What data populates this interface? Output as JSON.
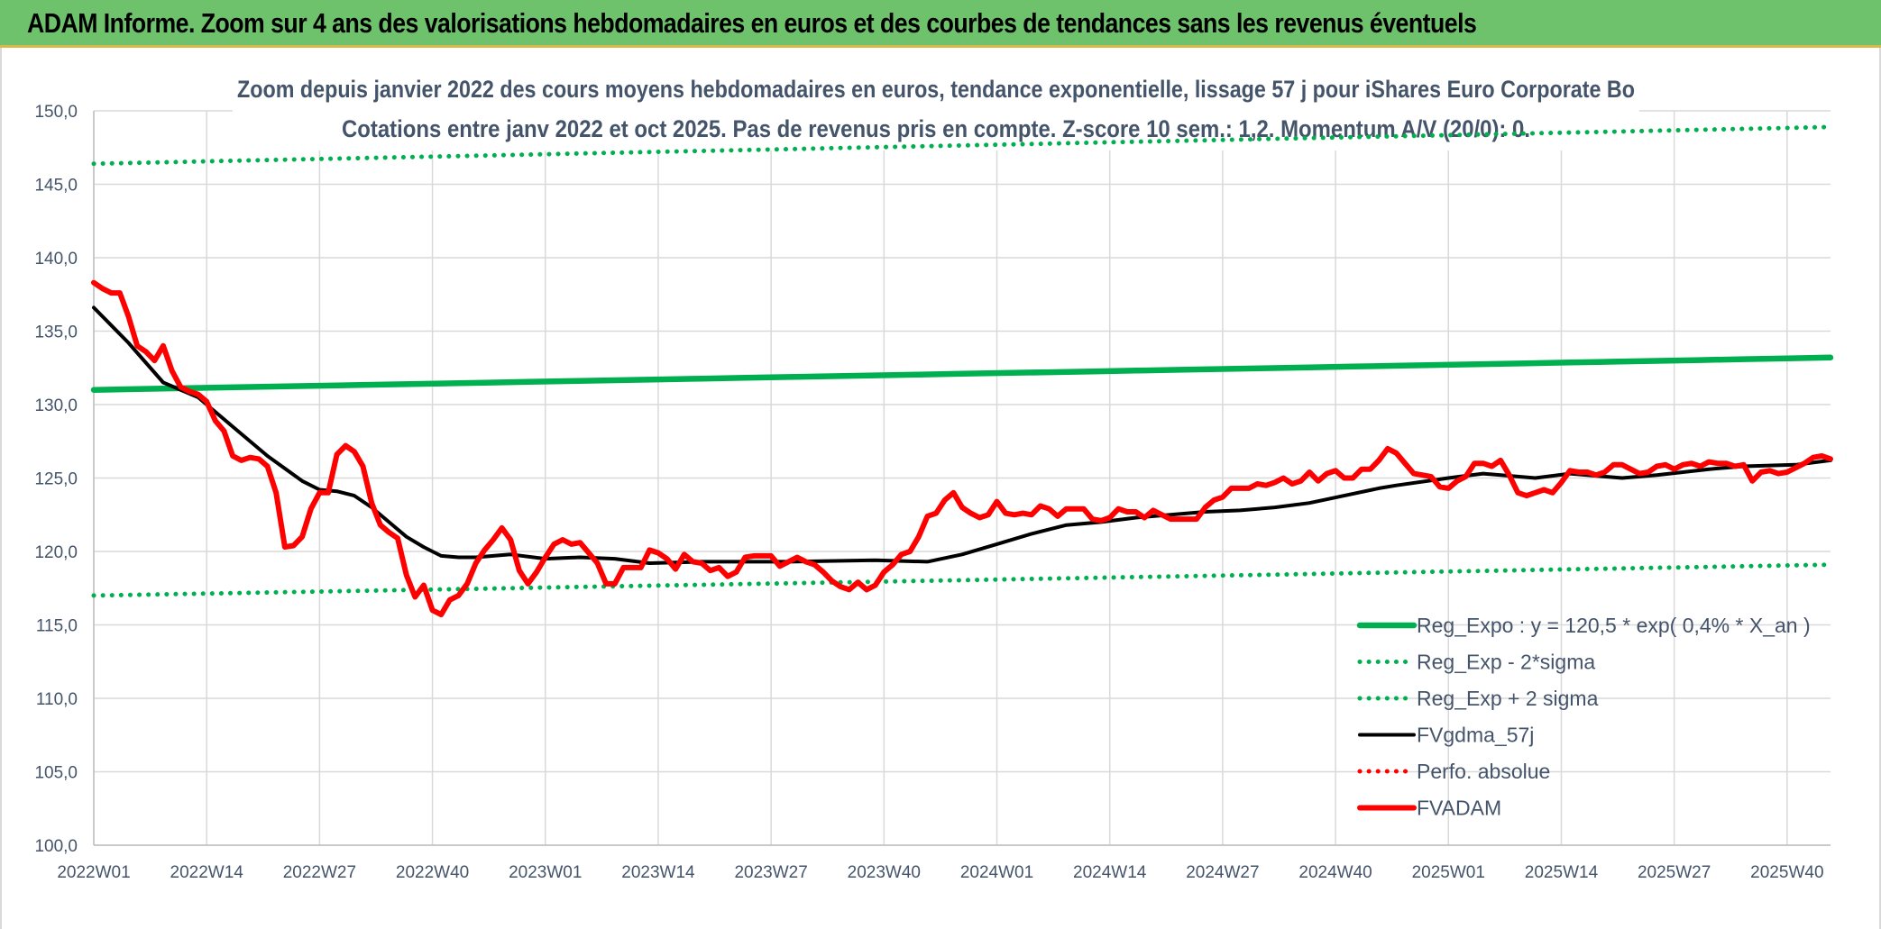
{
  "banner": {
    "title": "ADAM Informe. Zoom sur 4 ans des valorisations hebdomadaires en euros et des courbes de tendances sans les revenus éventuels"
  },
  "chart_data": {
    "type": "line",
    "title_line1": "Zoom depuis janvier 2022 des cours moyens hebdomadaires en euros, tendance exponentielle, lissage 57 j pour iShares Euro Corporate Bo",
    "title_line2": "Cotations entre janv 2022 et oct 2025. Pas de revenus pris en compte. Z-score 10 sem.: 1,2. Momentum A/V (20/0): 0.",
    "ylim": [
      100,
      150
    ],
    "y_ticks": [
      "100,0",
      "105,0",
      "110,0",
      "115,0",
      "120,0",
      "125,0",
      "130,0",
      "135,0",
      "140,0",
      "145,0",
      "150,0"
    ],
    "x_ticks": [
      "2022W01",
      "2022W14",
      "2022W27",
      "2022W40",
      "2023W01",
      "2023W14",
      "2023W27",
      "2023W40",
      "2024W01",
      "2024W14",
      "2024W27",
      "2024W40",
      "2025W01",
      "2025W14",
      "2025W27",
      "2025W40"
    ],
    "x_range_weeks": [
      0,
      200
    ],
    "grid": true,
    "legend_position": "bottom-right",
    "series": [
      {
        "name": "Reg_Expo : y = 120,5 * exp( 0,4% *  X_an )",
        "color": "#00b050",
        "style": "solid-thick",
        "x": [
          0,
          200
        ],
        "values": [
          131.0,
          133.2
        ]
      },
      {
        "name": "Reg_Exp - 2*sigma",
        "color": "#00b050",
        "style": "dotted",
        "x": [
          0,
          200
        ],
        "values": [
          117.0,
          119.1
        ]
      },
      {
        "name": "Reg_Exp + 2 sigma",
        "color": "#00b050",
        "style": "dotted",
        "x": [
          0,
          200
        ],
        "values": [
          146.4,
          148.9
        ]
      },
      {
        "name": "FVgdma_57j",
        "color": "#000000",
        "style": "solid",
        "x": [
          0,
          4,
          8,
          12,
          16,
          20,
          24,
          26,
          28,
          30,
          32,
          34,
          36,
          38,
          40,
          42,
          44,
          48,
          52,
          56,
          60,
          64,
          70,
          80,
          90,
          96,
          100,
          104,
          108,
          112,
          116,
          120,
          124,
          128,
          132,
          136,
          140,
          144,
          148,
          150,
          156,
          160,
          166,
          170,
          176,
          180,
          186,
          190,
          196,
          200
        ],
        "values": [
          136.6,
          134.2,
          131.5,
          130.5,
          128.5,
          126.5,
          124.8,
          124.2,
          124.1,
          123.8,
          123.0,
          122.0,
          121.0,
          120.3,
          119.7,
          119.6,
          119.6,
          119.8,
          119.5,
          119.6,
          119.5,
          119.2,
          119.3,
          119.3,
          119.4,
          119.3,
          119.8,
          120.5,
          121.2,
          121.8,
          122.0,
          122.3,
          122.5,
          122.7,
          122.8,
          123.0,
          123.3,
          123.8,
          124.3,
          124.5,
          125.0,
          125.3,
          125.0,
          125.3,
          125.0,
          125.2,
          125.6,
          125.8,
          125.9,
          126.2
        ]
      },
      {
        "name": "Perfo. absolue",
        "color": "#ff0000",
        "style": "dotted",
        "x": [],
        "values": []
      },
      {
        "name": "FVADAM",
        "color": "#ff0000",
        "style": "solid-thick",
        "x": [
          0,
          1,
          2,
          3,
          4,
          5,
          6,
          7,
          8,
          9,
          10,
          11,
          12,
          13,
          14,
          15,
          16,
          17,
          18,
          19,
          20,
          21,
          22,
          23,
          24,
          25,
          26,
          27,
          28,
          29,
          30,
          31,
          32,
          33,
          34,
          35,
          36,
          37,
          38,
          39,
          40,
          41,
          42,
          43,
          44,
          45,
          46,
          47,
          48,
          49,
          50,
          51,
          52,
          53,
          54,
          55,
          56,
          57,
          58,
          59,
          60,
          61,
          62,
          63,
          64,
          65,
          66,
          67,
          68,
          69,
          70,
          71,
          72,
          73,
          74,
          75,
          76,
          77,
          78,
          79,
          80,
          81,
          82,
          83,
          84,
          85,
          86,
          87,
          88,
          89,
          90,
          91,
          92,
          93,
          94,
          95,
          96,
          97,
          98,
          99,
          100,
          101,
          102,
          103,
          104,
          105,
          106,
          107,
          108,
          109,
          110,
          111,
          112,
          113,
          114,
          115,
          116,
          117,
          118,
          119,
          120,
          121,
          122,
          123,
          124,
          125,
          126,
          127,
          128,
          129,
          130,
          131,
          132,
          133,
          134,
          135,
          136,
          137,
          138,
          139,
          140,
          141,
          142,
          143,
          144,
          145,
          146,
          147,
          148,
          149,
          150,
          151,
          152,
          153,
          154,
          155,
          156,
          157,
          158,
          159,
          160,
          161,
          162,
          163,
          164,
          165,
          166,
          167,
          168,
          169,
          170,
          171,
          172,
          173,
          174,
          175,
          176,
          177,
          178,
          179,
          180,
          181,
          182,
          183,
          184,
          185,
          186,
          187,
          188,
          189,
          190,
          191,
          192,
          193,
          194,
          195,
          196,
          197,
          198,
          199,
          200
        ],
        "values": [
          138.3,
          137.9,
          137.6,
          137.6,
          136.0,
          134.0,
          133.6,
          133.0,
          134.0,
          132.3,
          131.2,
          130.9,
          130.7,
          130.2,
          128.9,
          128.2,
          126.5,
          126.2,
          126.4,
          126.3,
          125.8,
          124.0,
          120.3,
          120.4,
          121.0,
          122.9,
          124.0,
          124.0,
          126.6,
          127.2,
          126.8,
          125.8,
          123.3,
          121.8,
          121.3,
          120.9,
          118.4,
          116.9,
          117.7,
          116.0,
          115.7,
          116.7,
          117.0,
          117.8,
          119.2,
          120.1,
          120.8,
          121.6,
          120.8,
          118.7,
          117.8,
          118.6,
          119.6,
          120.5,
          120.8,
          120.5,
          120.6,
          119.9,
          119.2,
          117.8,
          117.8,
          118.9,
          118.9,
          118.9,
          120.1,
          119.9,
          119.5,
          118.8,
          119.8,
          119.3,
          119.2,
          118.7,
          118.9,
          118.3,
          118.6,
          119.6,
          119.7,
          119.7,
          119.7,
          119.0,
          119.3,
          119.6,
          119.3,
          119.1,
          118.6,
          118.0,
          117.6,
          117.4,
          117.9,
          117.4,
          117.7,
          118.6,
          119.1,
          119.8,
          120.0,
          121.0,
          122.4,
          122.6,
          123.5,
          124.0,
          123.0,
          122.6,
          122.3,
          122.5,
          123.4,
          122.6,
          122.5,
          122.6,
          122.5,
          123.1,
          122.9,
          122.4,
          122.9,
          122.9,
          122.9,
          122.2,
          122.1,
          122.3,
          122.9,
          122.7,
          122.7,
          122.3,
          122.8,
          122.5,
          122.2,
          122.2,
          122.2,
          122.2,
          123.0,
          123.5,
          123.7,
          124.3,
          124.3,
          124.3,
          124.6,
          124.5,
          124.7,
          125.0,
          124.6,
          124.8,
          125.4,
          124.8,
          125.3,
          125.5,
          125.0,
          125.0,
          125.6,
          125.6,
          126.2,
          127.0,
          126.7,
          126.0,
          125.3,
          125.2,
          125.1,
          124.4,
          124.3,
          124.8,
          125.1,
          126.0,
          126.0,
          125.8,
          126.2,
          125.2,
          124.0,
          123.8,
          124.0,
          124.2,
          124.0,
          124.7,
          125.5,
          125.4,
          125.4,
          125.2,
          125.4,
          125.9,
          125.9,
          125.6,
          125.3,
          125.4,
          125.8,
          125.9,
          125.6,
          125.9,
          126.0,
          125.8,
          126.1,
          126.0,
          126.0,
          125.8,
          125.9,
          124.8,
          125.4,
          125.5,
          125.3,
          125.4,
          125.7,
          126.0,
          126.4,
          126.5,
          126.3
        ]
      }
    ]
  }
}
